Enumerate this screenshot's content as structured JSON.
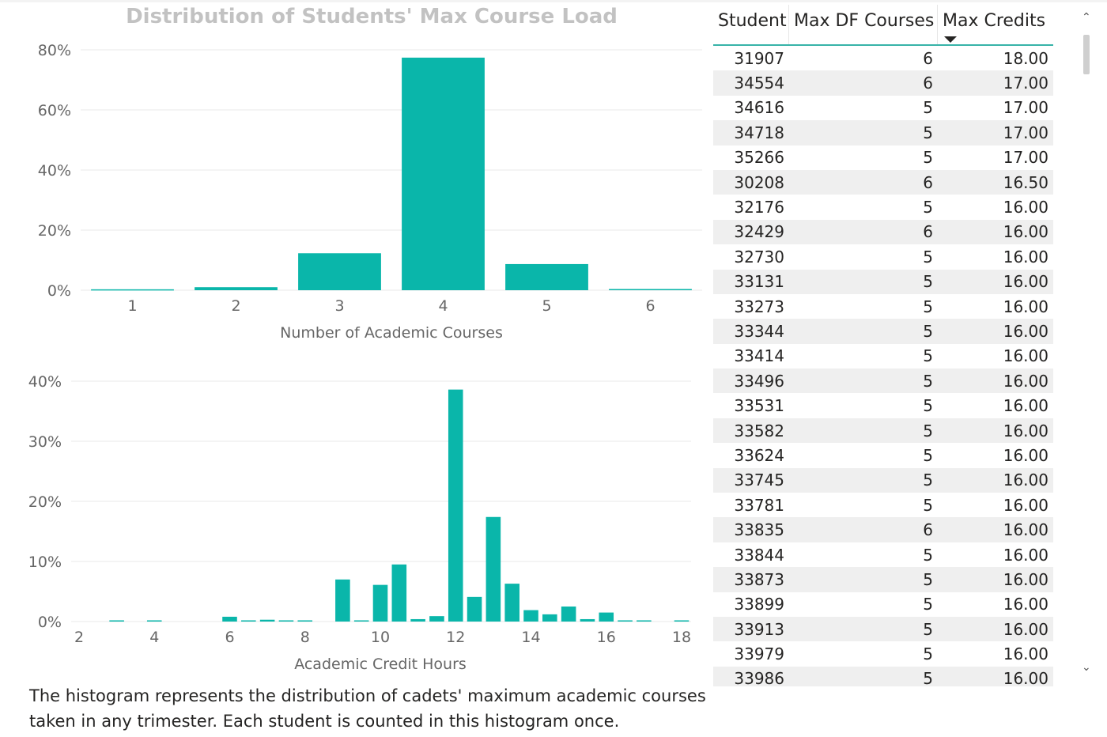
{
  "colors": {
    "bar": "#0ab6aa",
    "grid": "#e8e8e8",
    "axis_text": "#666666",
    "title": "#c2c2c2"
  },
  "title": "Distribution of Students' Max Course Load",
  "caption": "The histogram represents the distribution of cadets' maximum academic courses taken in any trimester. Each student is counted in this histogram once.",
  "chart_data": [
    {
      "type": "bar",
      "title": "Distribution of Students' Max Course Load",
      "categories": [
        "1",
        "2",
        "3",
        "4",
        "5",
        "6"
      ],
      "values": [
        0.3,
        1.0,
        12.3,
        77.4,
        8.7,
        0.4
      ],
      "xlabel": "Number of Academic Courses",
      "ylabel": "",
      "ylim": [
        0,
        80
      ],
      "yticks": [
        "0%",
        "20%",
        "40%",
        "60%",
        "80%"
      ],
      "grid": true
    },
    {
      "type": "bar",
      "x": [
        3,
        4,
        6,
        6.5,
        7,
        7.5,
        8,
        9,
        9.5,
        10,
        10.5,
        11,
        11.5,
        12,
        12.5,
        13,
        13.5,
        14,
        14.5,
        15,
        15.5,
        16,
        16.5,
        17,
        18
      ],
      "values": [
        0.2,
        0.2,
        0.8,
        0.2,
        0.3,
        0.2,
        0.2,
        7.0,
        0.2,
        6.1,
        9.5,
        0.4,
        0.9,
        38.6,
        4.1,
        17.4,
        6.3,
        1.9,
        1.2,
        2.5,
        0.4,
        1.5,
        0.2,
        0.2,
        0.2
      ],
      "xlabel": "Academic Credit Hours",
      "ylabel": "",
      "xlim": [
        2,
        18
      ],
      "xticks": [
        "2",
        "4",
        "6",
        "8",
        "10",
        "12",
        "14",
        "16",
        "18"
      ],
      "ylim": [
        0,
        40
      ],
      "yticks": [
        "0%",
        "10%",
        "20%",
        "30%",
        "40%"
      ],
      "grid": true
    }
  ],
  "table": {
    "headers": [
      "Student",
      "Max DF Courses",
      "Max Credits"
    ],
    "rows": [
      [
        "31907",
        "6",
        "18.00"
      ],
      [
        "34554",
        "6",
        "17.00"
      ],
      [
        "34616",
        "5",
        "17.00"
      ],
      [
        "34718",
        "5",
        "17.00"
      ],
      [
        "35266",
        "5",
        "17.00"
      ],
      [
        "30208",
        "6",
        "16.50"
      ],
      [
        "32176",
        "5",
        "16.00"
      ],
      [
        "32429",
        "6",
        "16.00"
      ],
      [
        "32730",
        "5",
        "16.00"
      ],
      [
        "33131",
        "5",
        "16.00"
      ],
      [
        "33273",
        "5",
        "16.00"
      ],
      [
        "33344",
        "5",
        "16.00"
      ],
      [
        "33414",
        "5",
        "16.00"
      ],
      [
        "33496",
        "5",
        "16.00"
      ],
      [
        "33531",
        "5",
        "16.00"
      ],
      [
        "33582",
        "5",
        "16.00"
      ],
      [
        "33624",
        "5",
        "16.00"
      ],
      [
        "33745",
        "5",
        "16.00"
      ],
      [
        "33781",
        "5",
        "16.00"
      ],
      [
        "33835",
        "6",
        "16.00"
      ],
      [
        "33844",
        "5",
        "16.00"
      ],
      [
        "33873",
        "5",
        "16.00"
      ],
      [
        "33899",
        "5",
        "16.00"
      ],
      [
        "33913",
        "5",
        "16.00"
      ],
      [
        "33979",
        "5",
        "16.00"
      ],
      [
        "33986",
        "5",
        "16.00"
      ]
    ]
  },
  "scrollbar": {
    "up_icon": "chevron-up-icon",
    "down_icon": "chevron-down-icon"
  }
}
